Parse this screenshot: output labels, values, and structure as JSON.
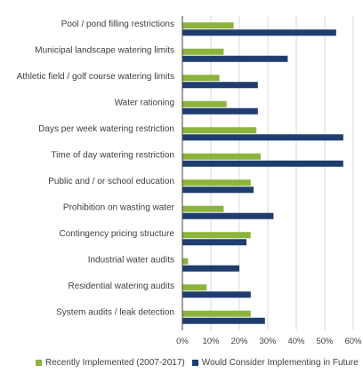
{
  "chart_data": {
    "type": "bar",
    "orientation": "horizontal",
    "categories": [
      "Pool / pond filling restrictions",
      "Municipal landscape watering limits",
      "Athletic field / golf course watering limits",
      "Water rationing",
      "Days per week watering restriction",
      "Time of day watering restriction",
      "Public and / or school education",
      "Prohibition on wasting water",
      "Contingency pricing structure",
      "Industrial water audits",
      "Residential watering audits",
      "System audits / leak detection"
    ],
    "series": [
      {
        "name": "Recently Implemented (2007-2017)",
        "color": "#8cb43c",
        "values": [
          18,
          14.5,
          13,
          15.5,
          26,
          27.5,
          24,
          14.5,
          24,
          2,
          8.5,
          24
        ]
      },
      {
        "name": "Would Consider Implementing in Future",
        "color": "#1f3d6e",
        "values": [
          54,
          37,
          26.5,
          26.5,
          56.5,
          56.5,
          25,
          32,
          22.5,
          20,
          24,
          29
        ]
      }
    ],
    "xlim": [
      0,
      60
    ],
    "x_ticks": [
      "0%",
      "10%",
      "20%",
      "30%",
      "40%",
      "50%",
      "60%"
    ],
    "grid": "vertical",
    "legend_position": "bottom"
  }
}
